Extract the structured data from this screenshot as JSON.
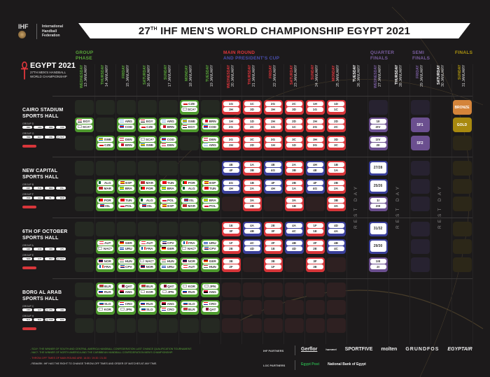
{
  "title": {
    "pre": "27",
    "sup": "TH",
    "post": " IHF MEN'S WORLD CHAMPIONSHIP EGYPT 2021"
  },
  "ihf": {
    "mark": "IHF",
    "lines": [
      "International",
      "Handball",
      "Federation"
    ]
  },
  "event_logo": {
    "title": "EGYPT 2021",
    "line1": "27TH MEN'S HANDBALL",
    "line2": "WORLD CHAMPIONSHIP"
  },
  "phases": {
    "group": [
      "GROUP",
      "PHASE"
    ],
    "main": "MAIN ROUND",
    "cup": "AND PRESIDENT'S CUP",
    "qf": [
      "QUARTER",
      "FINALS"
    ],
    "sf": [
      "SEMI",
      "FINALS"
    ],
    "final": "FINALS"
  },
  "colors": {
    "group": "#5aa83a",
    "main": "#e0363c",
    "cup": "#4a4fb0",
    "qf": "#7a5ea0",
    "final": "#b0970f",
    "rest": "#ffffff"
  },
  "days": [
    {
      "weekday": "WEDNESDAY",
      "date": "13 JANUARY",
      "phase": "group"
    },
    {
      "weekday": "THURSDAY",
      "date": "14 JANUARY",
      "phase": "group"
    },
    {
      "weekday": "FRIDAY",
      "date": "15 JANUARY",
      "phase": "group"
    },
    {
      "weekday": "SATURDAY",
      "date": "16 JANUARY",
      "phase": "group"
    },
    {
      "weekday": "SUNDAY",
      "date": "17 JANUARY",
      "phase": "group"
    },
    {
      "weekday": "MONDAY",
      "date": "18 JANUARY",
      "phase": "group"
    },
    {
      "weekday": "TUESDAY",
      "date": "19 JANUARY",
      "phase": "group"
    },
    {
      "weekday": "WEDNESDAY",
      "date": "20 JANUARY",
      "phase": "main"
    },
    {
      "weekday": "THURSDAY",
      "date": "21 JANUARY",
      "phase": "main"
    },
    {
      "weekday": "FRIDAY",
      "date": "22 JANUARY",
      "phase": "main"
    },
    {
      "weekday": "SATURDAY",
      "date": "23 JANUARY",
      "phase": "main"
    },
    {
      "weekday": "SUNDAY",
      "date": "24 JANUARY",
      "phase": "main"
    },
    {
      "weekday": "MONDAY",
      "date": "25 JANUARY",
      "phase": "main"
    },
    {
      "weekday": "TUESDAY",
      "date": "26 JANUARY",
      "phase": "rest"
    },
    {
      "weekday": "WEDNESDAY",
      "date": "27 JANUARY",
      "phase": "qf"
    },
    {
      "weekday": "THURSDAY",
      "date": "28 JANUARY",
      "phase": "rest"
    },
    {
      "weekday": "FRIDAY",
      "date": "29 JANUARY",
      "phase": "sf"
    },
    {
      "weekday": "SATURDAY",
      "date": "30 JANUARY",
      "phase": "rest"
    },
    {
      "weekday": "SUNDAY",
      "date": "31 JANUARY",
      "phase": "final"
    }
  ],
  "rest_label": "REST DAY",
  "flags": {
    "EGY": [
      "#ce1126",
      "#ffffff",
      "#000000"
    ],
    "CZE": [
      "#ffffff",
      "#d7141a"
    ],
    "SCA*": [
      "#ffffff"
    ],
    "NAC*": [
      "#ffffff"
    ],
    "ARG": [
      "#74acdf",
      "#ffffff",
      "#74acdf"
    ],
    "COD": [
      "#007fff",
      "#ce1021",
      "#007fff"
    ],
    "BRN": [
      "#ffffff",
      "#ce1126",
      "#ce1126"
    ],
    "SWE": [
      "#006aa7",
      "#fecc00",
      "#006aa7"
    ],
    "DEN": [
      "#c8102e",
      "#ffffff",
      "#c8102e"
    ],
    "ALG": [
      "#006233",
      "#ffffff"
    ],
    "MAR": [
      "#c1272d"
    ],
    "ESP": [
      "#aa151b",
      "#f1bf00",
      "#aa151b"
    ],
    "BRA": [
      "#009c3b",
      "#ffdf00",
      "#009c3b"
    ],
    "POR": [
      "#006600",
      "#ff0000",
      "#ff0000"
    ],
    "TUN": [
      "#e70013"
    ],
    "POL": [
      "#ffffff",
      "#dc143c"
    ],
    "ISL": [
      "#02529c",
      "#dc1e35",
      "#02529c"
    ],
    "AUT": [
      "#ed2939",
      "#ffffff",
      "#ed2939"
    ],
    "GER": [
      "#000000",
      "#dd0000",
      "#ffce00"
    ],
    "URU": [
      "#ffffff",
      "#0038a8",
      "#ffffff",
      "#0038a8"
    ],
    "FRA": [
      "#0055a4",
      "#ffffff",
      "#ef4135"
    ],
    "CPV": [
      "#003893",
      "#ffffff",
      "#cf2027",
      "#003893"
    ],
    "NOR": [
      "#ba0c2f",
      "#00205b",
      "#ba0c2f"
    ],
    "HUN": [
      "#ce2939",
      "#ffffff",
      "#477050"
    ],
    "BLR": [
      "#c8313e",
      "#c8313e",
      "#4aa657"
    ],
    "RUS": [
      "#ffffff",
      "#0039a6",
      "#d52b1e"
    ],
    "QAT": [
      "#ffffff",
      "#8a1538",
      "#8a1538"
    ],
    "ANG": [
      "#cc092f",
      "#000000"
    ],
    "KOR": [
      "#ffffff"
    ],
    "JPN": [
      "#ffffff"
    ],
    "SLO": [
      "#ffffff",
      "#005da4",
      "#ed1c24"
    ],
    "CRO": [
      "#ff0000",
      "#ffffff",
      "#171796"
    ]
  },
  "sections": [
    {
      "name": [
        "CAIRO STADIUM",
        "SPORTS HALL"
      ],
      "groups": [
        {
          "label": "GROUP D",
          "teams": [
            "DEN",
            "ARG",
            "BRN",
            "COD"
          ]
        },
        {
          "label": "GROUP G",
          "teams": [
            "SWE",
            "EGY",
            "CZE",
            "SCA*"
          ]
        }
      ],
      "rows": [
        [
          null,
          null,
          null,
          null,
          null,
          {
            "t": "g",
            "a": "CZE",
            "b": "SCA*"
          },
          null,
          {
            "t": "m",
            "a": "1G",
            "b": "3H"
          },
          {
            "t": "m",
            "a": "1C",
            "b": "3D"
          },
          {
            "t": "m",
            "a": "2G",
            "b": "3H"
          },
          {
            "t": "m",
            "a": "2C",
            "b": "3D"
          },
          {
            "t": "m",
            "a": "1H",
            "b": "1G"
          },
          {
            "t": "m",
            "a": "1D",
            "b": "1C"
          },
          null,
          null,
          null,
          null,
          null,
          {
            "t": "bronze",
            "label": "BRONZE"
          }
        ],
        [
          {
            "t": "g",
            "a": "EGY",
            "b": "SCA*"
          },
          null,
          {
            "t": "g",
            "a": "ARG",
            "b": "COD"
          },
          {
            "t": "g",
            "a": "EGY",
            "b": "CZE"
          },
          {
            "t": "g",
            "a": "ARG",
            "b": "BRN"
          },
          {
            "t": "g",
            "a": "SWE",
            "b": "EGY"
          },
          {
            "t": "g",
            "a": "BRN",
            "b": "COD"
          },
          {
            "t": "m",
            "a": "1H",
            "b": "2G"
          },
          {
            "t": "m",
            "a": "1D",
            "b": "2C"
          },
          {
            "t": "m",
            "a": "2H",
            "b": "1G"
          },
          {
            "t": "m",
            "a": "2D",
            "b": "1C"
          },
          {
            "t": "m",
            "a": "2H",
            "b": "2G"
          },
          {
            "t": "m",
            "a": "2D",
            "b": "2C"
          },
          null,
          {
            "t": "q2",
            "a": "1II",
            "b": "2IV"
          },
          null,
          {
            "t": "sf",
            "label": "SF1"
          },
          null,
          {
            "t": "gold",
            "label": "GOLD"
          }
        ],
        [
          null,
          {
            "t": "g",
            "a": "SWE",
            "b": "CZE"
          },
          {
            "t": "g",
            "a": "DEN",
            "b": "BRN"
          },
          {
            "t": "g",
            "a": "SCA*",
            "b": "SWE"
          },
          {
            "t": "g",
            "a": "COD",
            "b": "DEN"
          },
          null,
          {
            "t": "g",
            "a": "DEN",
            "b": "ARG"
          },
          {
            "t": "m",
            "a": "3G",
            "b": "2H"
          },
          {
            "t": "m",
            "a": "3C",
            "b": "2D"
          },
          {
            "t": "m",
            "a": "3G",
            "b": "1H"
          },
          {
            "t": "m",
            "a": "3C",
            "b": "1D"
          },
          {
            "t": "m",
            "a": "3H",
            "b": "3G"
          },
          {
            "t": "m",
            "a": "3D",
            "b": "3C"
          },
          null,
          {
            "t": "q2",
            "a": "1IV",
            "b": "2II"
          },
          null,
          {
            "t": "sf",
            "label": "SF2"
          },
          null,
          null
        ]
      ]
    },
    {
      "name": [
        "NEW CAPITAL",
        "SPORTS HALL"
      ],
      "groups": [
        {
          "label": "GROUP B",
          "teams": [
            "ESP",
            "TUN",
            "BRA",
            "POL"
          ]
        },
        {
          "label": "GROUP F",
          "teams": [
            "POR",
            "ALG",
            "ISL",
            "MAR"
          ]
        }
      ],
      "rows": [
        [
          null,
          null,
          null,
          null,
          null,
          null,
          null,
          {
            "t": "p",
            "a": "4E",
            "b": "4F"
          },
          {
            "t": "m",
            "a": "1A",
            "b": "3B"
          },
          {
            "t": "p",
            "a": "4E",
            "b": "4G"
          },
          {
            "t": "m",
            "a": "2A",
            "b": "3B"
          },
          {
            "t": "p",
            "a": "4H",
            "b": "4E"
          },
          {
            "t": "m",
            "a": "1B",
            "b": "1A"
          },
          null,
          {
            "t": "q1",
            "label": "27/28"
          },
          null,
          null,
          null,
          null
        ],
        [
          null,
          {
            "t": "g",
            "a": "ALG",
            "b": "MAR"
          },
          {
            "t": "g",
            "a": "ESP",
            "b": "BRA"
          },
          {
            "t": "g",
            "a": "MAR",
            "b": "POR"
          },
          {
            "t": "g",
            "a": "TUN",
            "b": "BRA"
          },
          {
            "t": "g",
            "a": "POR",
            "b": "ALG"
          },
          {
            "t": "g",
            "a": "ESP",
            "b": "TUN"
          },
          {
            "t": "p",
            "a": "4G",
            "b": "4H"
          },
          {
            "t": "m",
            "a": "1B",
            "b": "2A"
          },
          {
            "t": "p",
            "a": "4F",
            "b": "4H"
          },
          {
            "t": "m",
            "a": "2B",
            "b": "1A"
          },
          {
            "t": "p",
            "a": "4F",
            "b": "4G"
          },
          {
            "t": "m",
            "a": "2B",
            "b": "2A"
          },
          null,
          {
            "t": "q1",
            "label": "25/26"
          },
          null,
          null,
          null,
          null
        ],
        [
          null,
          {
            "t": "g",
            "a": "POR",
            "b": "ISL"
          },
          {
            "t": "g",
            "a": "TUN",
            "b": "POL"
          },
          {
            "t": "g",
            "a": "ALG",
            "b": "ISL"
          },
          {
            "t": "g",
            "a": "POL",
            "b": "ESP"
          },
          {
            "t": "g",
            "a": "ISL",
            "b": "MAR"
          },
          {
            "t": "g",
            "a": "BRA",
            "b": "POL"
          },
          null,
          {
            "t": "m",
            "a": "3A",
            "b": "2B"
          },
          null,
          {
            "t": "m",
            "a": "3A",
            "b": "1B"
          },
          null,
          {
            "t": "m",
            "a": "3B",
            "b": "3A"
          },
          null,
          {
            "t": "q2",
            "a": "1I",
            "b": "2III"
          },
          null,
          null,
          null,
          null
        ]
      ]
    },
    {
      "name": [
        "6TH OF OCTOBER",
        "SPORTS HALL"
      ],
      "groups": [
        {
          "label": "GROUP A",
          "teams": [
            "GER",
            "HUN",
            "URU",
            "CPV"
          ]
        },
        {
          "label": "GROUP E",
          "teams": [
            "NOR",
            "AUT",
            "FRA",
            "NAC*"
          ]
        }
      ],
      "rows": [
        [
          null,
          null,
          null,
          null,
          null,
          null,
          null,
          {
            "t": "m",
            "a": "1E",
            "b": "3F"
          },
          {
            "t": "p",
            "a": "4A",
            "b": "4B"
          },
          {
            "t": "m",
            "a": "2E",
            "b": "3F"
          },
          {
            "t": "p",
            "a": "4A",
            "b": "4C"
          },
          {
            "t": "m",
            "a": "1F",
            "b": "1E"
          },
          {
            "t": "p",
            "a": "4D",
            "b": "4A"
          },
          null,
          {
            "t": "q1",
            "label": "31/32"
          },
          null,
          null,
          null,
          null
        ],
        [
          null,
          {
            "t": "g",
            "a": "AUT",
            "b": "NAC*"
          },
          {
            "t": "g",
            "a": "GER",
            "b": "URU"
          },
          {
            "t": "g",
            "a": "AUT",
            "b": "FRA"
          },
          {
            "t": "g",
            "a": "CPV",
            "b": "GER"
          },
          {
            "t": "g",
            "a": "FRA",
            "b": "NAC*"
          },
          {
            "t": "g",
            "a": "URU",
            "b": "CPV"
          },
          {
            "t": "m",
            "a": "1F",
            "b": "2E"
          },
          {
            "t": "p",
            "a": "4C",
            "b": "4D"
          },
          {
            "t": "m",
            "a": "2F",
            "b": "1E"
          },
          {
            "t": "p",
            "a": "4B",
            "b": "4D"
          },
          {
            "t": "m",
            "a": "2F",
            "b": "2E"
          },
          {
            "t": "p",
            "a": "4B",
            "b": "4C"
          },
          null,
          {
            "t": "q1",
            "label": "29/30"
          },
          null,
          null,
          null,
          null
        ],
        [
          null,
          {
            "t": "g",
            "a": "NOR",
            "b": "FRA"
          },
          {
            "t": "g",
            "a": "HUN",
            "b": "CPV"
          },
          {
            "t": "g",
            "a": "NAC*",
            "b": "NOR"
          },
          {
            "t": "g",
            "a": "HUN",
            "b": "URU"
          },
          {
            "t": "g",
            "a": "NOR",
            "b": "AUT"
          },
          {
            "t": "g",
            "a": "GER",
            "b": "HUN"
          },
          {
            "t": "m",
            "a": "3E",
            "b": "2F"
          },
          null,
          {
            "t": "m",
            "a": "3E",
            "b": "1F"
          },
          null,
          {
            "t": "m",
            "a": "3F",
            "b": "3E"
          },
          null,
          null,
          {
            "t": "q2",
            "a": "1III",
            "b": "2I"
          },
          null,
          null,
          null,
          null
        ]
      ]
    },
    {
      "name": [
        "BORG AL ARAB",
        "SPORTS HALL"
      ],
      "groups": [
        {
          "label": "GROUP C",
          "teams": [
            "CRO",
            "QAT",
            "JPN",
            "ANG"
          ]
        },
        {
          "label": "GROUP H",
          "teams": [
            "SLO",
            "BLR",
            "KOR",
            "RUS"
          ]
        }
      ],
      "rows": [
        [
          null,
          {
            "t": "g",
            "a": "BLR",
            "b": "RUS"
          },
          {
            "t": "g",
            "a": "QAT",
            "b": "ANG"
          },
          {
            "t": "g",
            "a": "BLR",
            "b": "KOR"
          },
          {
            "t": "g",
            "a": "QAT",
            "b": "JPN"
          },
          {
            "t": "g",
            "a": "KOR",
            "b": "RUS"
          },
          {
            "t": "g",
            "a": "JPN",
            "b": "ANG"
          },
          null,
          null,
          null,
          null,
          null,
          null,
          null,
          null,
          null,
          null,
          null,
          null
        ],
        [
          null,
          {
            "t": "g",
            "a": "SLO",
            "b": "KOR"
          },
          {
            "t": "g",
            "a": "CRO",
            "b": "JPN"
          },
          {
            "t": "g",
            "a": "RUS",
            "b": "SLO"
          },
          {
            "t": "g",
            "a": "ANG",
            "b": "CRO"
          },
          {
            "t": "g",
            "a": "SLO",
            "b": "BLR"
          },
          {
            "t": "g",
            "a": "CRO",
            "b": "QAT"
          },
          null,
          null,
          null,
          null,
          null,
          null,
          null,
          null,
          null,
          null,
          null,
          null
        ],
        [
          null,
          null,
          null,
          null,
          null,
          null,
          null,
          null,
          null,
          null,
          null,
          null,
          null,
          null,
          null,
          null,
          null,
          null,
          null
        ]
      ]
    }
  ],
  "notes": [
    {
      "text": "- SCA*: THE WINNER OF SOUTH AND CENTRAL AMERICA HANDBALL CONFEDERATION LAST CHANCE QUALIFICATION TOURNAMENT.",
      "color": "#5aa83a"
    },
    {
      "text": "- NAC*: THE WINNER OF NORTH AMERICA AND THE CARIBBEAN HANDBALL CONFEDERATION MEN'S CHAMPIONSHIP.",
      "color": "#5aa83a"
    },
    {
      "text": "- THROW-OFF TIMES OF MAIN ROUND ARE: 16:30 / 19:30 / 21:30",
      "color": "#e0363c"
    },
    {
      "text": "- REMARK: IHF HAS THE RIGHT TO CHANGE THROW-OFF TIMES AND ORDER OF MATCHES AT ANY TIME.",
      "color": "#dddddd"
    }
  ],
  "partners": {
    "ihf_label": "IHF PARTNERS",
    "ihf": [
      "Gerflor",
      "hummel",
      "SPORTFIVE",
      "molten",
      "GRUNDFOS",
      "EGYPTAIR"
    ],
    "loc_label": "LOC PARTNERS",
    "loc": [
      "Egypt Post",
      "National Bank of Egypt"
    ]
  }
}
